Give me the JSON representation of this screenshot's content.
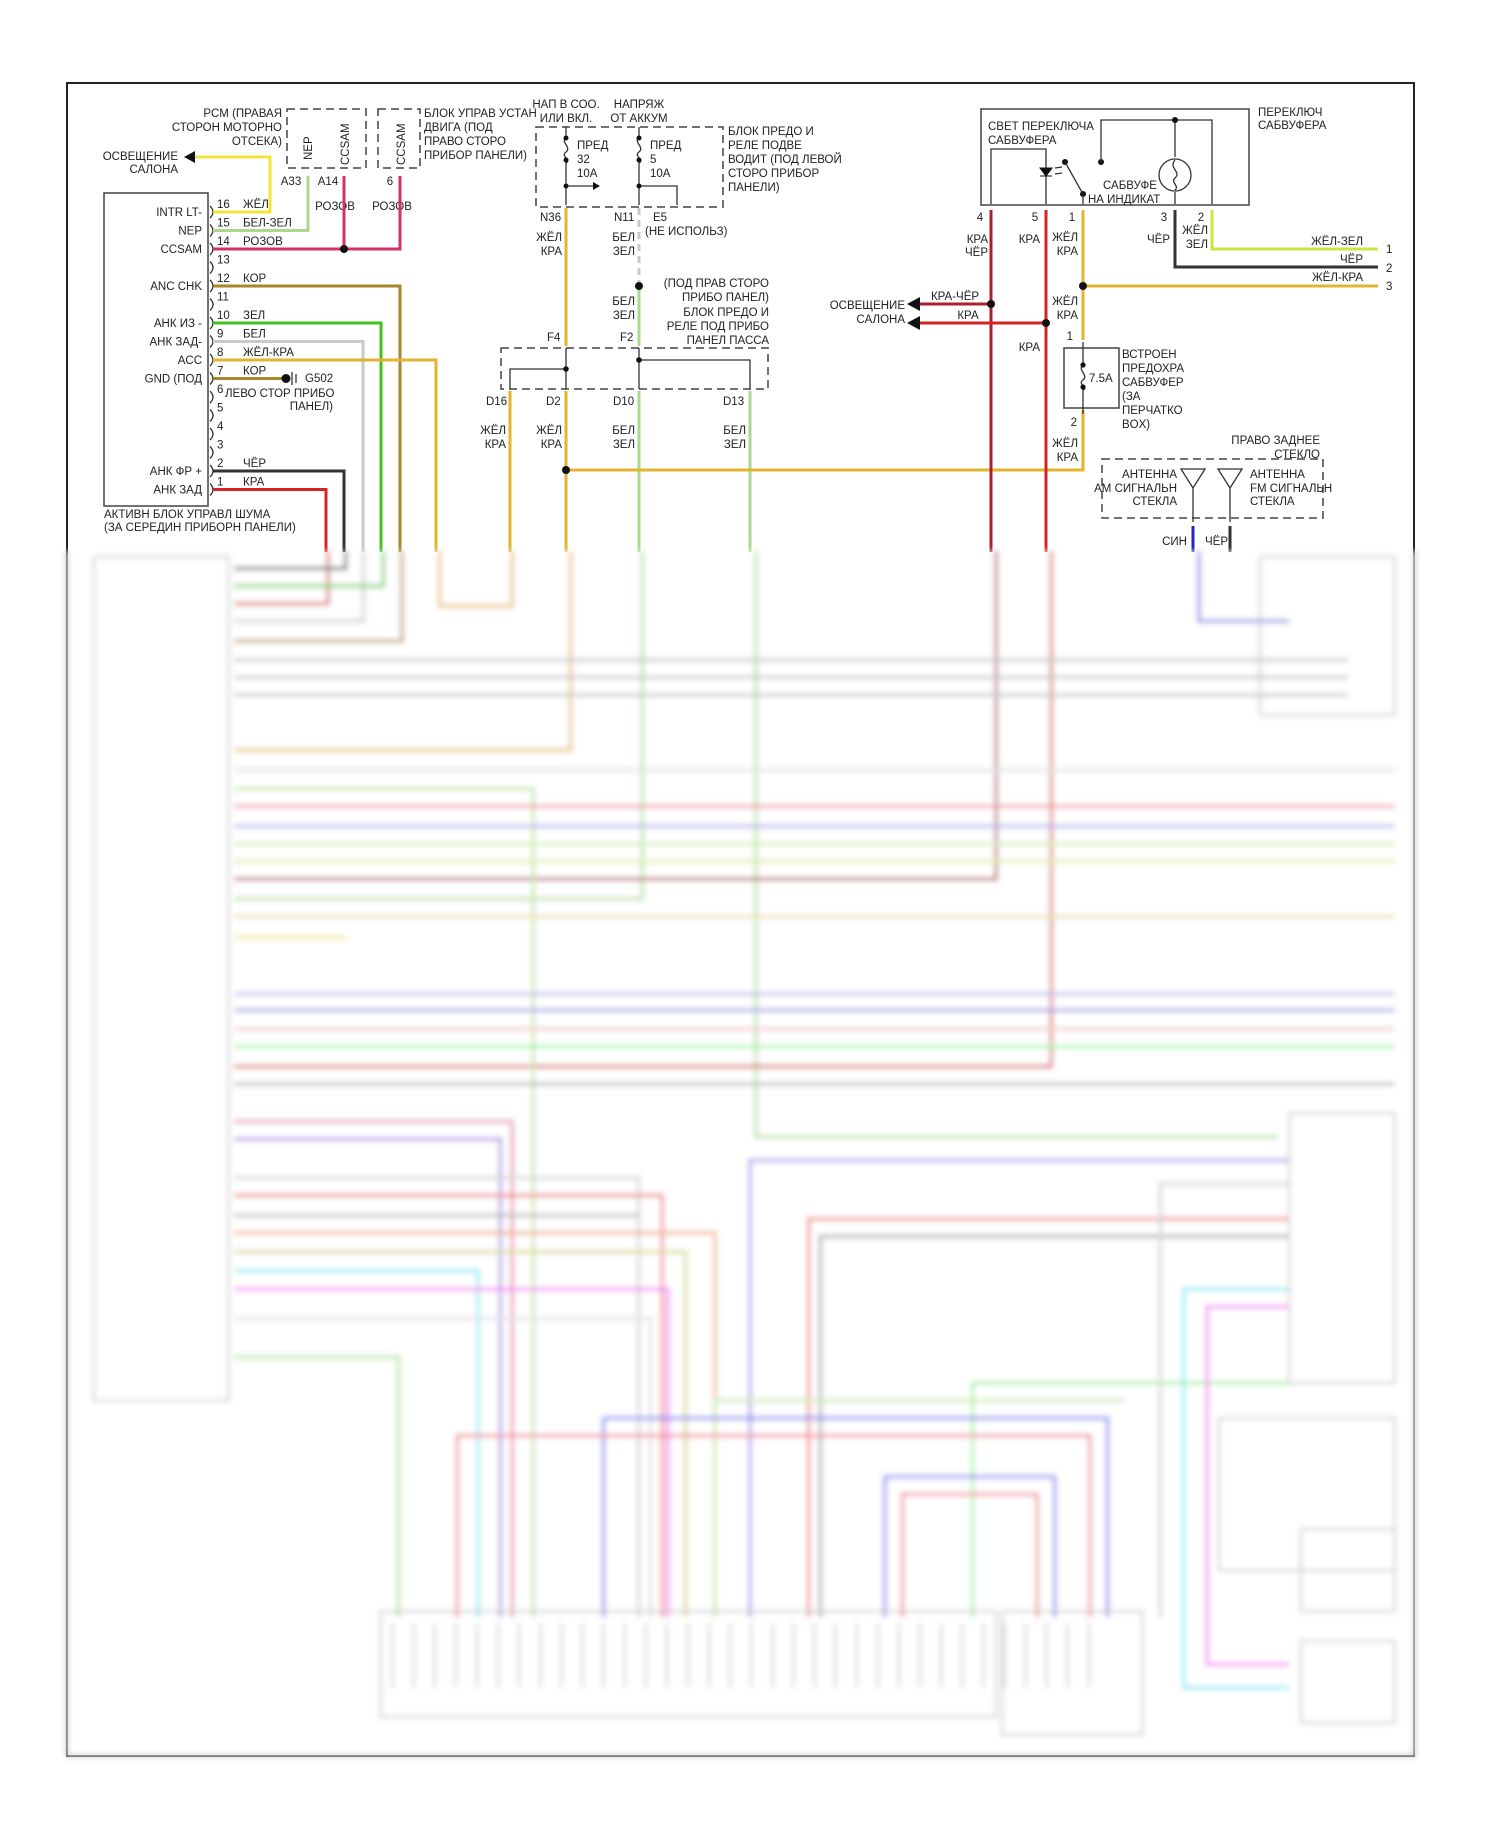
{
  "colors": {
    "yellow": "#f2e43a",
    "white_green": "#a9d98f",
    "pink": "#d3306c",
    "brown": "#a8862a",
    "green": "#3fc21f",
    "white": "#c9c9c9",
    "yellow_red": "#e3b431",
    "black": "#333333",
    "red": "#d42424",
    "red_black": "#a8202c",
    "yellow_green": "#c6ea3c",
    "blue": "#2424c0"
  },
  "pcm": {
    "label": [
      "PCM (ПРАВАЯ",
      "СТОРОН МОТОРНО",
      "ОТСЕКА)"
    ],
    "pin_nep": "NEP",
    "pin_ccsam": "CCSAM",
    "pin_a33": "A33",
    "pin_a14": "A14",
    "wire_a14": "РОЗОВ"
  },
  "ecm": {
    "label": [
      "БЛОК УПРАВ УСТАН",
      "ДВИГА (ПОД",
      "ПРАВО СТОРО",
      "ПРИБОР ПАНЕЛИ)"
    ],
    "pin_ccsam": "CCSAM",
    "pin_6": "6",
    "wire_6": "РОЗОВ"
  },
  "interior_light_left": [
    "ОСВЕЩЕНИЕ",
    "САЛОНА"
  ],
  "anc_module": {
    "caption": [
      "АКТИВН БЛОК УПРАВЛ ШУМА",
      "(ЗА СЕРЕДИН ПРИБОРН ПАНЕЛИ)"
    ],
    "pins": [
      {
        "num": "16",
        "label": "INTR LT-",
        "wire": "ЖЁЛ"
      },
      {
        "num": "15",
        "label": "NEP",
        "wire": "БЕЛ-ЗЕЛ"
      },
      {
        "num": "14",
        "label": "CCSAM",
        "wire": "РОЗОВ"
      },
      {
        "num": "13",
        "label": "",
        "wire": ""
      },
      {
        "num": "12",
        "label": "ANC CHK",
        "wire": "КОР"
      },
      {
        "num": "11",
        "label": "",
        "wire": ""
      },
      {
        "num": "10",
        "label": "АНК ИЗ -",
        "wire": "ЗЕЛ"
      },
      {
        "num": "9",
        "label": "АНК ЗАД-",
        "wire": "БЕЛ"
      },
      {
        "num": "8",
        "label": "ACC",
        "wire": "ЖЁЛ-КРА"
      },
      {
        "num": "7",
        "label": "GND (ПОД",
        "wire": "КОР"
      },
      {
        "num": "6",
        "label": "",
        "wire": ""
      },
      {
        "num": "5",
        "label": "",
        "wire": ""
      },
      {
        "num": "4",
        "label": "",
        "wire": ""
      },
      {
        "num": "3",
        "label": "",
        "wire": ""
      },
      {
        "num": "2",
        "label": "АНК ФР +",
        "wire": "ЧЁР"
      },
      {
        "num": "1",
        "label": "АНК ЗАД",
        "wire": "КРА"
      }
    ],
    "ground_name": "G502",
    "ground_location": [
      "ЛЕВО СТОР ПРИБО",
      "ПАНЕЛ)"
    ]
  },
  "driver_fuse_block": {
    "feed_ign": [
      "НАП В СОО.",
      "ИЛИ ВКЛ."
    ],
    "feed_batt": [
      "НАПРЯЖ",
      "ОТ АККУМ"
    ],
    "fuse32": [
      "ПРЕД",
      "32",
      "10A"
    ],
    "fuse5": [
      "ПРЕД",
      "5",
      "10A"
    ],
    "label": [
      "БЛОК ПРЕДО И",
      "РЕЛЕ ПОДВЕ",
      "ВОДИТ (ПОД ЛЕВОЙ",
      "СТОРО ПРИБОР",
      "ПАНЕЛИ)"
    ],
    "pin_n36": "N36",
    "pin_n11": "N11",
    "pin_e5": "E5",
    "e5_note": "(НЕ ИСПОЛЬЗ)",
    "wire_n36": [
      "ЖЁЛ",
      "КРА"
    ],
    "wire_n11": [
      "БЕЛ",
      "ЗЕЛ"
    ],
    "wire_n11_b": [
      "БЕЛ",
      "ЗЕЛ"
    ]
  },
  "pass_fuse_block": {
    "label": [
      "(ПОД ПРАВ СТОРО",
      "ПРИБО ПАНЕЛ)",
      "БЛОК ПРЕДО И",
      "РЕЛЕ ПОД ПРИБО",
      "ПАНЕЛ ПАССА"
    ],
    "pin_f4": "F4",
    "pin_f2": "F2",
    "pin_d16": "D16",
    "pin_d2": "D2",
    "pin_d10": "D10",
    "pin_d13": "D13",
    "wire_d16": [
      "ЖЁЛ",
      "КРА"
    ],
    "wire_d2": [
      "ЖЁЛ",
      "КРА"
    ],
    "wire_d10": [
      "БЕЛ",
      "ЗЕЛ"
    ],
    "wire_d13": [
      "БЕЛ",
      "ЗЕЛ"
    ]
  },
  "sub_switch": {
    "light_label": [
      "СВЕТ ПЕРЕКЛЮЧА",
      "САБВУФЕРА"
    ],
    "label": [
      "ПЕРЕКЛЮЧ",
      "САБВУФЕРА"
    ],
    "indicator": [
      "САБВУФЕ",
      "НА ИНДИКАТ"
    ],
    "pins": [
      "4",
      "5",
      "1",
      "3",
      "2"
    ],
    "wire_4": [
      "КРА",
      "ЧЁР"
    ],
    "wire_5": "КРА",
    "wire_1": [
      "ЖЁЛ",
      "КРА"
    ],
    "wire_3": "ЧЁР",
    "wire_2": [
      "ЖЁЛ",
      "ЗЕЛ"
    ],
    "out_wires": [
      {
        "name": "ЖЁЛ-ЗЕЛ",
        "num": "1"
      },
      {
        "name": "ЧЁР",
        "num": "2"
      },
      {
        "name": "ЖЁЛ-КРА",
        "num": "3"
      }
    ]
  },
  "interior_light_right": {
    "label": [
      "ОСВЕЩЕНИЕ",
      "САЛОНА"
    ],
    "wire_a": "КРА-ЧЁР",
    "wire_b": "КРА"
  },
  "sub_fuse": {
    "pin1": "1",
    "pin2": "2",
    "rating": "7.5A",
    "label": [
      "ВСТРОЕН",
      "ПРЕДОХРА",
      "САБВУФЕР",
      "(ЗА",
      "ПЕРЧАТКО",
      "BOX)"
    ],
    "wire_in": [
      "ЖЁЛ",
      "КРА"
    ],
    "wire_out": [
      "ЖЁЛ",
      "КРА"
    ],
    "wire_red": "КРА"
  },
  "antenna": {
    "location": [
      "ПРАВО ЗАДНЕЕ",
      "СТЕКЛО"
    ],
    "am": [
      "АНТЕННА",
      "АМ СИГНАЛЬН",
      "СТЕКЛА"
    ],
    "fm": [
      "АНТЕННА",
      "FM СИГНАЛЬН",
      "СТЕКЛА"
    ],
    "wire_am": "СИН",
    "wire_fm": "ЧЁР"
  }
}
